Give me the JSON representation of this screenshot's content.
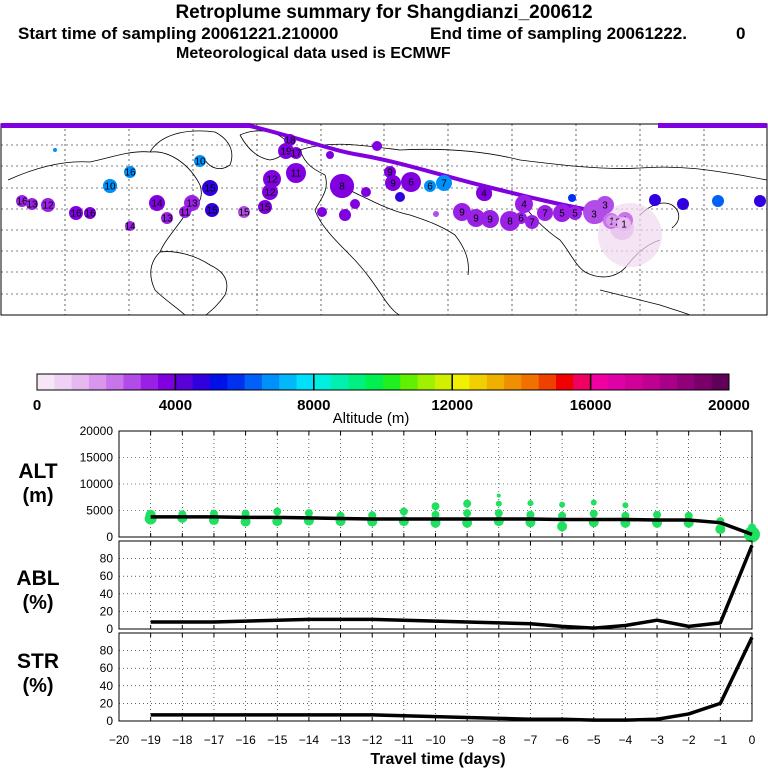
{
  "header": {
    "title": "Retroplume summary for Shangdianzi_200612",
    "start": "Start time of sampling 20061221.210000",
    "end": "End time of sampling 20061222.",
    "end_suffix": "0",
    "met": "Meteorological data used is ECMWF"
  },
  "colorbar": {
    "label": "Altitude (m)",
    "ticks": [
      "0",
      "4000",
      "8000",
      "12000",
      "16000",
      "20000"
    ],
    "colors": [
      "#f6e6f6",
      "#efd2f3",
      "#e5b8ef",
      "#d896ec",
      "#c874ea",
      "#b24ce8",
      "#9a20e6",
      "#8000e0",
      "#5a00d8",
      "#3000e0",
      "#0010e8",
      "#0030f0",
      "#0060f8",
      "#0090fa",
      "#00b8fa",
      "#00e0fa",
      "#00f0e0",
      "#00f0b0",
      "#00f080",
      "#00f050",
      "#20f020",
      "#60f000",
      "#a0f000",
      "#d0f000",
      "#f0f000",
      "#f0d000",
      "#f0b000",
      "#f09000",
      "#f07000",
      "#f04000",
      "#f00000",
      "#f00060",
      "#f000a0",
      "#e000a8",
      "#d00098",
      "#c00090",
      "#a80088",
      "#900078",
      "#780068",
      "#600058"
    ]
  },
  "map_markers": [
    "16",
    "13",
    "12",
    "16",
    "16",
    "14",
    "13",
    "10",
    "16",
    "15",
    "15",
    "12",
    "12",
    "11",
    "10",
    "9",
    "9",
    "8",
    "7",
    "6",
    "6",
    "5",
    "4",
    "4",
    "3",
    "3",
    "2",
    "1",
    "1",
    "18",
    "19",
    "17",
    "15",
    "15",
    "14",
    "13",
    "11",
    "10",
    "9",
    "9",
    "9",
    "8",
    "7",
    "7",
    "6",
    "5",
    "4",
    "3",
    "2",
    "1",
    "10"
  ],
  "chart_data": [
    {
      "type": "scatter",
      "panel": "ALT",
      "ylabel_lines": [
        "ALT",
        "(m)"
      ],
      "ylim": [
        0,
        20000
      ],
      "yticks": [
        0,
        5000,
        10000,
        15000,
        20000
      ],
      "xlim": [
        -20,
        0
      ],
      "median_line": {
        "x": [
          -19,
          -18,
          -17,
          -16,
          -15,
          -14,
          -13,
          -12,
          -11,
          -10,
          -9,
          -8,
          -7,
          -6,
          -5,
          -4,
          -3,
          -2,
          -1,
          0
        ],
        "y": [
          3800,
          3800,
          3800,
          3700,
          3700,
          3600,
          3500,
          3400,
          3400,
          3400,
          3400,
          3400,
          3400,
          3300,
          3300,
          3300,
          3200,
          3200,
          2700,
          500
        ]
      },
      "points": [
        {
          "x": -19,
          "y": 3500,
          "s": 6
        },
        {
          "x": -19,
          "y": 4200,
          "s": 5
        },
        {
          "x": -18,
          "y": 3600,
          "s": 5
        },
        {
          "x": -18,
          "y": 4300,
          "s": 4
        },
        {
          "x": -17,
          "y": 3200,
          "s": 5
        },
        {
          "x": -17,
          "y": 4400,
          "s": 4
        },
        {
          "x": -16,
          "y": 2900,
          "s": 5
        },
        {
          "x": -16,
          "y": 4400,
          "s": 4
        },
        {
          "x": -15,
          "y": 3000,
          "s": 5
        },
        {
          "x": -15,
          "y": 4800,
          "s": 4
        },
        {
          "x": -14,
          "y": 3100,
          "s": 5
        },
        {
          "x": -14,
          "y": 4500,
          "s": 4
        },
        {
          "x": -13,
          "y": 3000,
          "s": 5
        },
        {
          "x": -13,
          "y": 4000,
          "s": 4
        },
        {
          "x": -12,
          "y": 2900,
          "s": 5
        },
        {
          "x": -12,
          "y": 4100,
          "s": 4
        },
        {
          "x": -11,
          "y": 3000,
          "s": 5
        },
        {
          "x": -11,
          "y": 4800,
          "s": 4
        },
        {
          "x": -10,
          "y": 2700,
          "s": 5
        },
        {
          "x": -10,
          "y": 4200,
          "s": 4
        },
        {
          "x": -10,
          "y": 5800,
          "s": 4
        },
        {
          "x": -9,
          "y": 2700,
          "s": 5
        },
        {
          "x": -9,
          "y": 4500,
          "s": 4
        },
        {
          "x": -9,
          "y": 6300,
          "s": 4
        },
        {
          "x": -8,
          "y": 3000,
          "s": 5
        },
        {
          "x": -8,
          "y": 4500,
          "s": 4
        },
        {
          "x": -8,
          "y": 6300,
          "s": 3
        },
        {
          "x": -8,
          "y": 7800,
          "s": 2
        },
        {
          "x": -7,
          "y": 2800,
          "s": 5
        },
        {
          "x": -7,
          "y": 4200,
          "s": 4
        },
        {
          "x": -7,
          "y": 6400,
          "s": 3
        },
        {
          "x": -6,
          "y": 2000,
          "s": 5
        },
        {
          "x": -6,
          "y": 4000,
          "s": 4
        },
        {
          "x": -6,
          "y": 6100,
          "s": 3
        },
        {
          "x": -5,
          "y": 2800,
          "s": 5
        },
        {
          "x": -5,
          "y": 4400,
          "s": 4
        },
        {
          "x": -5,
          "y": 6500,
          "s": 3
        },
        {
          "x": -4,
          "y": 2700,
          "s": 5
        },
        {
          "x": -4,
          "y": 4000,
          "s": 4
        },
        {
          "x": -4,
          "y": 6000,
          "s": 3
        },
        {
          "x": -3,
          "y": 2700,
          "s": 5
        },
        {
          "x": -3,
          "y": 4200,
          "s": 4
        },
        {
          "x": -2,
          "y": 2700,
          "s": 5
        },
        {
          "x": -2,
          "y": 4000,
          "s": 4
        },
        {
          "x": -1,
          "y": 1500,
          "s": 5
        },
        {
          "x": -1,
          "y": 3000,
          "s": 4
        },
        {
          "x": 0,
          "y": 500,
          "s": 8
        },
        {
          "x": 0,
          "y": 1800,
          "s": 4
        }
      ]
    },
    {
      "type": "line",
      "panel": "ABL",
      "ylabel_lines": [
        "ABL",
        "(%)"
      ],
      "ylim": [
        0,
        100
      ],
      "yticks": [
        0,
        20,
        40,
        60,
        80
      ],
      "xlim": [
        -20,
        0
      ],
      "x": [
        -19,
        -18,
        -17,
        -16,
        -15,
        -14,
        -13,
        -12,
        -11,
        -10,
        -9,
        -8,
        -7,
        -6,
        -5,
        -4,
        -3,
        -2,
        -1,
        0
      ],
      "y": [
        8,
        8,
        8,
        9,
        10,
        11,
        11,
        11,
        10,
        9,
        8,
        7,
        6,
        3,
        1,
        4,
        10,
        3,
        7,
        95
      ]
    },
    {
      "type": "line",
      "panel": "STR",
      "ylabel_lines": [
        "STR",
        "(%)"
      ],
      "ylim": [
        0,
        100
      ],
      "yticks": [
        0,
        20,
        40,
        60,
        80
      ],
      "xlim": [
        -20,
        0
      ],
      "x": [
        -19,
        -18,
        -17,
        -16,
        -15,
        -14,
        -13,
        -12,
        -11,
        -10,
        -9,
        -8,
        -7,
        -6,
        -5,
        -4,
        -3,
        -2,
        -1,
        0
      ],
      "y": [
        7,
        7,
        7,
        7,
        7,
        7,
        7,
        7,
        6,
        5,
        4,
        3,
        2,
        2,
        1,
        1,
        2,
        8,
        20,
        95
      ]
    }
  ],
  "xaxis": {
    "ticks": [
      -20,
      -19,
      -18,
      -17,
      -16,
      -15,
      -14,
      -13,
      -12,
      -11,
      -10,
      -9,
      -8,
      -7,
      -6,
      -5,
      -4,
      -3,
      -2,
      -1,
      0
    ],
    "tick_labels": [
      "−20",
      "−19",
      "−18",
      "−17",
      "−16",
      "−15",
      "−14",
      "−13",
      "−12",
      "−11",
      "−10",
      "−9",
      "−8",
      "−7",
      "−6",
      "−5",
      "−4",
      "−3",
      "−2",
      "−1",
      "0"
    ],
    "label": "Travel time (days)"
  }
}
